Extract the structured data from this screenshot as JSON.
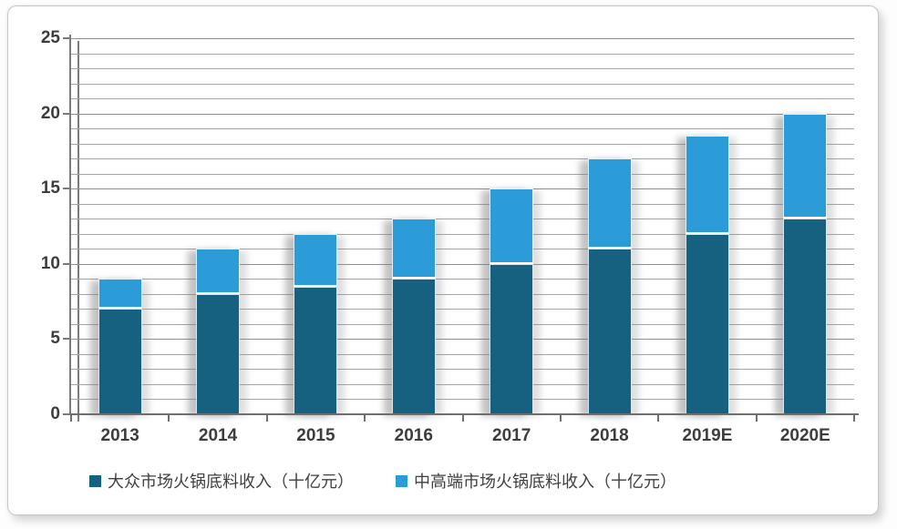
{
  "chart_data": {
    "type": "bar",
    "stacked": true,
    "categories": [
      "2013",
      "2014",
      "2015",
      "2016",
      "2017",
      "2018",
      "2019E",
      "2020E"
    ],
    "series": [
      {
        "name": "大众市场火锅底料收入（十亿元）",
        "color": "#176180",
        "values": [
          7,
          8,
          8.5,
          9,
          10,
          11,
          12,
          13
        ]
      },
      {
        "name": "中高端市场火锅底料收入（十亿元）",
        "color": "#2B9CD7",
        "values": [
          2,
          3,
          3.5,
          4,
          5,
          6,
          6.5,
          7
        ]
      }
    ],
    "totals": [
      9,
      11,
      12,
      13,
      15,
      17,
      18.5,
      20
    ],
    "title": "",
    "xlabel": "",
    "ylabel": "",
    "ylim": [
      0,
      25
    ],
    "yticks": [
      0,
      5,
      10,
      15,
      20,
      25
    ],
    "grid_step": 1,
    "grid": true,
    "legend_position": "bottom"
  },
  "colors": {
    "series_dark": "#176180",
    "series_light": "#2B9CD7",
    "gridline": "#a5a5a5",
    "axis": "#6e6e6e",
    "text": "#3d3d3d",
    "card_background": "#ffffff",
    "card_border": "#c6c6c6"
  }
}
